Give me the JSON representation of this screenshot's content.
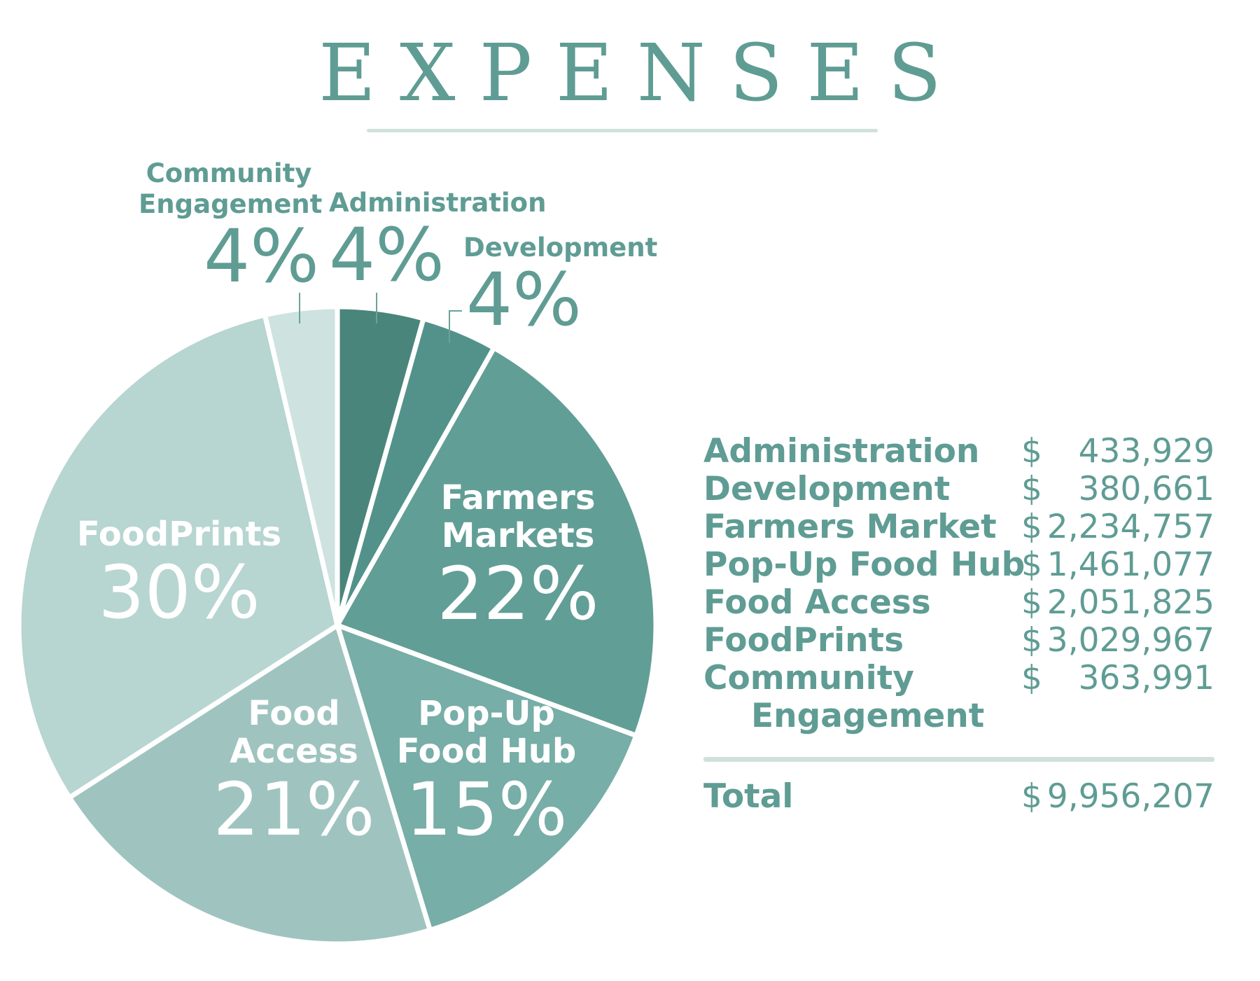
{
  "title": "EXPENSES",
  "chart_data": {
    "type": "pie",
    "slices": [
      {
        "label": "Administration",
        "pct_label": "4%",
        "value": 433929,
        "color": "#4a857b"
      },
      {
        "label": "Development",
        "pct_label": "4%",
        "value": 380661,
        "color": "#52928a"
      },
      {
        "label": "Farmers Markets",
        "pct_label": "22%",
        "value": 2234757,
        "color": "#619e96"
      },
      {
        "label": "Pop-Up Food Hub",
        "pct_label": "15%",
        "value": 1461077,
        "color": "#77aea7"
      },
      {
        "label": "Food Access",
        "pct_label": "21%",
        "value": 2051825,
        "color": "#9fc4c0"
      },
      {
        "label": "FoodPrints",
        "pct_label": "30%",
        "value": 3029967,
        "color": "#b7d5d1"
      },
      {
        "label": "Community Engagement",
        "pct_label": "4%",
        "value": 363991,
        "color": "#cee3e0"
      }
    ]
  },
  "labels": {
    "admin": {
      "name": "Administration",
      "pct": "4%"
    },
    "dev": {
      "name": "Development",
      "pct": "4%"
    },
    "community": {
      "line1": "Community",
      "line2": "Engagement",
      "pct": "4%"
    },
    "farmers": {
      "line1": "Farmers",
      "line2": "Markets",
      "pct": "22%"
    },
    "popup": {
      "line1": "Pop-Up",
      "line2": "Food Hub",
      "pct": "15%"
    },
    "food_access": {
      "line1": "Food",
      "line2": "Access",
      "pct": "21%"
    },
    "foodprints": {
      "name": "FoodPrints",
      "pct": "30%"
    }
  },
  "table": {
    "currency": "$",
    "rows": [
      {
        "name": "Administration",
        "amount": "433,929"
      },
      {
        "name": "Development",
        "amount": "380,661"
      },
      {
        "name": "Farmers Market",
        "amount": "2,234,757"
      },
      {
        "name": "Pop-Up Food Hub",
        "amount": "1,461,077"
      },
      {
        "name": "Food Access",
        "amount": "2,051,825"
      },
      {
        "name": "FoodPrints",
        "amount": "3,029,967"
      },
      {
        "name": "Community",
        "name2": "Engagement",
        "amount": "363,991"
      }
    ],
    "total": {
      "name": "Total",
      "amount": "9,956,207"
    }
  }
}
